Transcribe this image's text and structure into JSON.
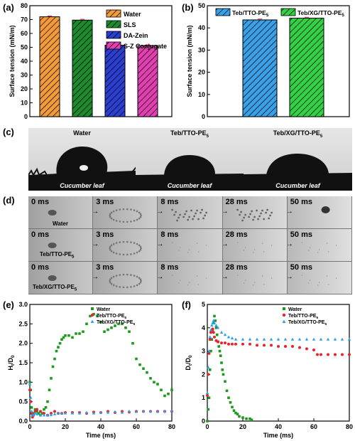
{
  "panels": {
    "a": "(a)",
    "b": "(b)",
    "c": "(c)",
    "d": "(d)",
    "e": "(e)",
    "f": "(f)"
  },
  "chart_a": {
    "type": "bar",
    "ylabel": "Surface tension (mN/m)",
    "ylim": [
      0,
      80
    ],
    "yticks": [
      "0",
      "10",
      "20",
      "30",
      "40",
      "50",
      "60",
      "70",
      "80"
    ],
    "categories": [
      "Water",
      "SLS",
      "DA-Zein",
      "S-Z Conjugate"
    ],
    "values": [
      72,
      69.6,
      51.5,
      51.2
    ],
    "colors": [
      "#f39a3b",
      "#1d8a2e",
      "#2b3ed1",
      "#e23fb0"
    ]
  },
  "chart_b": {
    "type": "bar",
    "ylabel": "Surface tension (mN/m)",
    "ylim": [
      0,
      50
    ],
    "yticks": [
      "0",
      "10",
      "20",
      "30",
      "40",
      "50"
    ],
    "categories": [
      "Teb/TTO-PE5",
      "Teb/XG/TTO-PE5"
    ],
    "legend": [
      {
        "main": "Teb/TTO-PE",
        "sub": "5"
      },
      {
        "main": "Teb/XG/TTO-PE",
        "sub": "5"
      }
    ],
    "values": [
      43.6,
      44.4
    ],
    "colors": [
      "#3aa0e8",
      "#33d144"
    ]
  },
  "panel_c": {
    "titles": [
      {
        "main": "Water",
        "sub": ""
      },
      {
        "main": "Teb/TTO-PE",
        "sub": "5"
      },
      {
        "main": "Teb/XG/TTO-PE",
        "sub": "5"
      }
    ],
    "leaf_label": "Cucumber leaf"
  },
  "panel_d": {
    "times": [
      "0 ms",
      "3 ms",
      "8 ms",
      "28 ms",
      "50 ms"
    ],
    "rows": [
      {
        "main": "Water",
        "sub": ""
      },
      {
        "main": "Teb/TTO-PE",
        "sub": "5"
      },
      {
        "main": "Teb/XG/TTO-PE",
        "sub": "5"
      }
    ]
  },
  "chart_e": {
    "type": "scatter",
    "xlabel": "Time (ms)",
    "ylabel_main": "H",
    "ylabel_sub1": "t",
    "ylabel_slash": "/D",
    "ylabel_sub2": "0",
    "xlim": [
      0,
      80
    ],
    "ylim": [
      0,
      3.0
    ],
    "xticks": [
      "0",
      "20",
      "40",
      "60",
      "80"
    ],
    "yticks": [
      "0.0",
      "0.5",
      "1.0",
      "1.5",
      "2.0",
      "2.5",
      "3.0"
    ],
    "legend": [
      {
        "main": "Water",
        "sub": ""
      },
      {
        "main": "Teb/TTO-PE",
        "sub": "5"
      },
      {
        "main": "Teb/XG/TTO-PE",
        "sub": "5"
      }
    ],
    "series": [
      {
        "name": "Water",
        "color": "#1a9a1a",
        "x": [
          0,
          0.5,
          1,
          1.5,
          2,
          3,
          4,
          5,
          6,
          7,
          8,
          9,
          10,
          11,
          12,
          13,
          14,
          15,
          16,
          17,
          18,
          19,
          20,
          22,
          24,
          26,
          28,
          30,
          32,
          34,
          36,
          38,
          40,
          42,
          44,
          46,
          48,
          50,
          52,
          54,
          56,
          58,
          60,
          62,
          64,
          66,
          68,
          70,
          72,
          74,
          76,
          78,
          80
        ],
        "y": [
          1.0,
          0.8,
          0.35,
          0.15,
          0.2,
          0.3,
          0.25,
          0.2,
          0.15,
          0.2,
          0.3,
          0.35,
          0.5,
          0.8,
          1.1,
          1.4,
          1.6,
          1.8,
          1.9,
          2.0,
          2.1,
          2.15,
          2.2,
          2.2,
          2.15,
          2.25,
          2.25,
          2.3,
          2.5,
          2.7,
          2.75,
          2.7,
          2.55,
          2.3,
          2.35,
          2.4,
          2.45,
          2.5,
          2.5,
          2.4,
          2.3,
          2.0,
          1.6,
          1.45,
          1.35,
          1.25,
          1.1,
          1.0,
          0.95,
          0.8,
          0.65,
          0.7,
          0.8
        ]
      },
      {
        "name": "Teb/TTO-PE5",
        "color": "#e8242a",
        "x": [
          0,
          0.5,
          1,
          1.5,
          2,
          3,
          4,
          6,
          8,
          10,
          12,
          14,
          16,
          18,
          20,
          24,
          28,
          32,
          36,
          40,
          44,
          48,
          52,
          56,
          60,
          64,
          68,
          72,
          76,
          80
        ],
        "y": [
          0.8,
          0.5,
          0.2,
          0.1,
          0.15,
          0.25,
          0.3,
          0.25,
          0.2,
          0.15,
          0.2,
          0.25,
          0.2,
          0.2,
          0.22,
          0.22,
          0.22,
          0.2,
          0.23,
          0.22,
          0.25,
          0.22,
          0.25,
          0.23,
          0.25,
          0.25,
          0.25,
          0.25,
          0.25,
          0.25
        ]
      },
      {
        "name": "Teb/XG/TTO-PE5",
        "color": "#2a9ef0",
        "x": [
          0,
          0.5,
          1,
          1.5,
          2,
          3,
          4,
          6,
          8,
          10,
          12,
          14,
          16,
          18,
          20,
          24,
          28,
          32,
          36,
          40,
          44,
          48,
          52,
          56,
          60,
          64,
          68,
          72,
          76,
          80
        ],
        "y": [
          0.95,
          0.6,
          0.25,
          0.15,
          0.15,
          0.2,
          0.18,
          0.15,
          0.15,
          0.15,
          0.16,
          0.18,
          0.2,
          0.2,
          0.2,
          0.2,
          0.2,
          0.22,
          0.2,
          0.22,
          0.22,
          0.24,
          0.22,
          0.25,
          0.24,
          0.25,
          0.25,
          0.24,
          0.25,
          0.25
        ]
      }
    ]
  },
  "chart_f": {
    "type": "scatter",
    "xlabel": "Time (ms)",
    "ylabel_main": "D",
    "ylabel_sub1": "t",
    "ylabel_slash": "/D",
    "ylabel_sub2": "0",
    "xlim": [
      0,
      80
    ],
    "ylim": [
      0,
      5
    ],
    "xticks": [
      "0",
      "20",
      "40",
      "60",
      "80"
    ],
    "yticks": [
      "0",
      "1",
      "2",
      "3",
      "4",
      "5"
    ],
    "legend": [
      {
        "main": "Water",
        "sub": ""
      },
      {
        "main": "Teb/TTO-PE",
        "sub": "5"
      },
      {
        "main": "Teb/XG/TTO-PE",
        "sub": "5"
      }
    ],
    "series": [
      {
        "name": "Water",
        "color": "#1a9a1a",
        "x": [
          0,
          0.5,
          1,
          1.5,
          2,
          2.5,
          3,
          3.5,
          4,
          4.5,
          5,
          5.5,
          6,
          6.5,
          7,
          7.5,
          8,
          8.5,
          9,
          10,
          11,
          12,
          13,
          14,
          15,
          16,
          17,
          18,
          20,
          22,
          24,
          25
        ],
        "y": [
          0,
          0.5,
          1.0,
          2.2,
          3.0,
          3.5,
          3.9,
          4.2,
          4.5,
          4.3,
          4.0,
          3.7,
          3.4,
          3.2,
          3.0,
          2.8,
          2.5,
          2.2,
          2.0,
          1.7,
          1.3,
          1.0,
          0.8,
          0.6,
          0.45,
          0.35,
          0.3,
          0.2,
          0.15,
          0.1,
          0.1,
          0.05
        ]
      },
      {
        "name": "Teb/TTO-PE5",
        "color": "#e8242a",
        "x": [
          0,
          0.5,
          1,
          1.5,
          2,
          2.5,
          3,
          3.5,
          4,
          5,
          6,
          8,
          10,
          12,
          14,
          16,
          20,
          24,
          28,
          32,
          36,
          40,
          44,
          48,
          52,
          56,
          60,
          62,
          64,
          68,
          72,
          76,
          80
        ],
        "y": [
          1.1,
          2.0,
          2.9,
          3.5,
          3.8,
          3.9,
          3.95,
          3.8,
          3.6,
          3.45,
          3.4,
          3.35,
          3.35,
          3.3,
          3.3,
          3.3,
          3.3,
          3.3,
          3.25,
          3.25,
          3.25,
          3.2,
          3.2,
          3.2,
          3.15,
          3.1,
          3.05,
          2.85,
          2.85,
          2.85,
          2.85,
          2.85,
          2.85
        ]
      },
      {
        "name": "Teb/XG/TTO-PE5",
        "color": "#2a9ef0",
        "x": [
          0,
          0.5,
          1,
          1.5,
          2,
          2.5,
          3,
          3.5,
          4,
          5,
          6,
          8,
          10,
          12,
          14,
          16,
          20,
          24,
          28,
          32,
          36,
          40,
          44,
          48,
          52,
          56,
          60,
          64,
          68,
          72,
          76,
          80
        ],
        "y": [
          1.2,
          2.3,
          3.0,
          3.6,
          3.9,
          4.1,
          4.2,
          4.3,
          4.2,
          4.1,
          4.0,
          3.8,
          3.7,
          3.6,
          3.55,
          3.5,
          3.5,
          3.5,
          3.5,
          3.5,
          3.5,
          3.5,
          3.5,
          3.5,
          3.5,
          3.5,
          3.5,
          3.5,
          3.5,
          3.5,
          3.5,
          3.5
        ]
      }
    ]
  }
}
